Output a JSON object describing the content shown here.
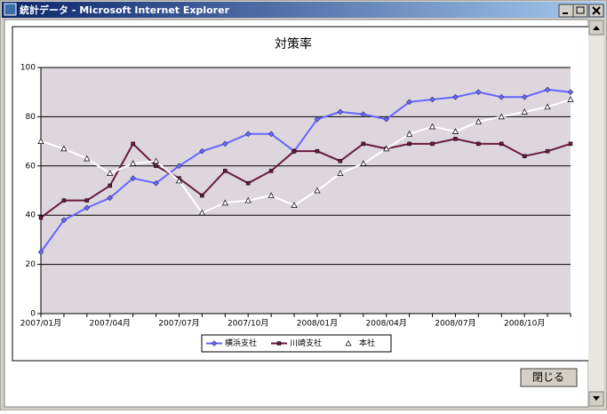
{
  "window": {
    "title": "統計データ - Microsoft Internet Explorer",
    "close_button": "閉じる"
  },
  "chart_data": {
    "type": "line",
    "title": "対策率",
    "categories": [
      "2007/01月",
      null,
      null,
      "2007/04月",
      null,
      null,
      "2007/07月",
      null,
      null,
      "2007/10月",
      null,
      null,
      "2008/01月",
      null,
      null,
      "2008/04月",
      null,
      null,
      "2008/07月",
      null,
      null,
      "2008/10月",
      null,
      null
    ],
    "series": [
      {
        "name": "横浜支社",
        "color": "#6666ff",
        "marker": "diamond",
        "values": [
          25,
          38,
          43,
          47,
          55,
          53,
          60,
          66,
          69,
          73,
          73,
          66,
          79,
          82,
          81,
          79,
          86,
          87,
          88,
          90,
          88,
          88,
          91,
          90
        ]
      },
      {
        "name": "川崎支社",
        "color": "#6b1a3f",
        "marker": "square",
        "values": [
          39,
          46,
          46,
          52,
          69,
          60,
          55,
          48,
          58,
          53,
          58,
          66,
          66,
          62,
          69,
          67,
          69,
          69,
          71,
          69,
          69,
          64,
          66,
          69
        ]
      },
      {
        "name": "本社",
        "color": "#ffffff",
        "marker": "triangle",
        "values": [
          70,
          67,
          63,
          57,
          61,
          62,
          54,
          41,
          45,
          46,
          48,
          44,
          50,
          57,
          61,
          67,
          73,
          76,
          74,
          78,
          80,
          82,
          84,
          87
        ]
      }
    ],
    "ylim": [
      0,
      100
    ],
    "yticks": [
      0,
      20,
      40,
      60,
      80,
      100
    ],
    "grid": true,
    "legend": "bottom"
  }
}
